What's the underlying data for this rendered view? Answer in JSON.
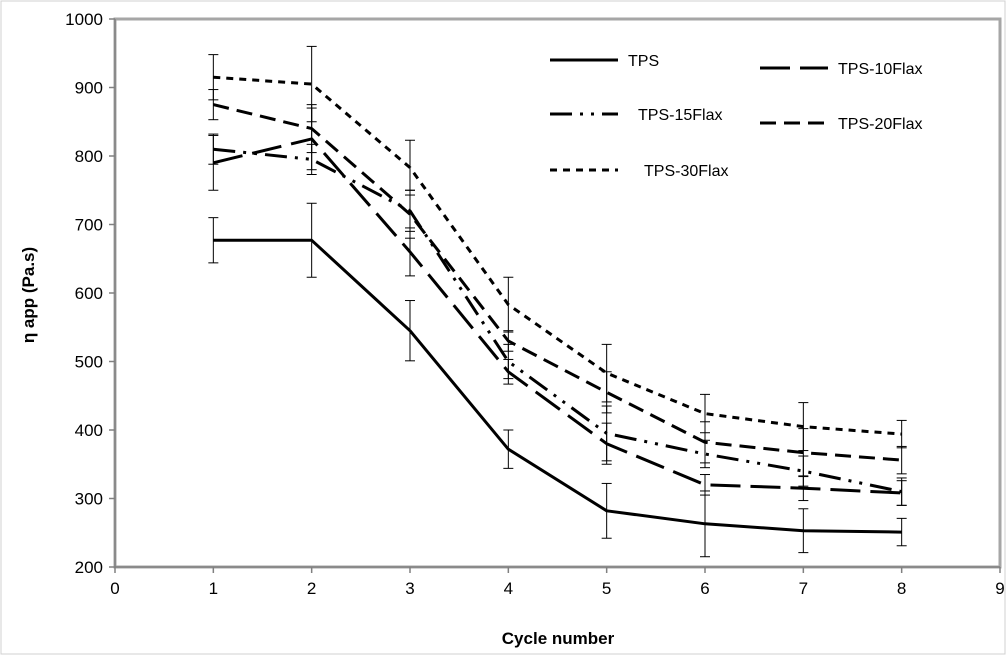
{
  "chart_data": {
    "type": "line",
    "title": "",
    "xlabel": "Cycle number",
    "ylabel": "η app (Pa.s)",
    "xlim": [
      0,
      9
    ],
    "ylim": [
      200,
      1000
    ],
    "x_ticks": [
      "0",
      "1",
      "2",
      "3",
      "4",
      "5",
      "6",
      "7",
      "8",
      "9"
    ],
    "y_ticks": [
      "200",
      "300",
      "400",
      "500",
      "600",
      "700",
      "800",
      "900",
      "1000"
    ],
    "grid": false,
    "legend_position": "top-right inside",
    "x": [
      1,
      2,
      3,
      4,
      5,
      6,
      7,
      8
    ],
    "series": [
      {
        "name": "TPS",
        "style": "solid",
        "values": [
          677,
          677,
          545,
          372,
          282,
          263,
          253,
          251
        ],
        "errors": [
          33,
          54,
          44,
          28,
          40,
          48,
          32,
          20
        ]
      },
      {
        "name": "TPS-10Flax",
        "style": "long-dash",
        "values": [
          790,
          825,
          660,
          485,
          380,
          320,
          315,
          308
        ],
        "errors": [
          40,
          45,
          35,
          18,
          30,
          15,
          18,
          18
        ]
      },
      {
        "name": "TPS-15Flax",
        "style": "dash-dot-dot",
        "values": [
          810,
          795,
          720,
          500,
          395,
          365,
          340,
          310
        ],
        "errors": [
          22,
          22,
          30,
          25,
          40,
          20,
          22,
          20
        ]
      },
      {
        "name": "TPS-20Flax",
        "style": "short-dash",
        "values": [
          875,
          840,
          715,
          530,
          455,
          382,
          367,
          356
        ],
        "errors": [
          22,
          35,
          35,
          15,
          30,
          30,
          35,
          20
        ]
      },
      {
        "name": "TPS-30Flax",
        "style": "dotted-dash",
        "values": [
          915,
          905,
          783,
          583,
          483,
          424,
          405,
          394
        ],
        "errors": [
          33,
          55,
          40,
          40,
          42,
          28,
          35,
          20
        ]
      }
    ]
  }
}
